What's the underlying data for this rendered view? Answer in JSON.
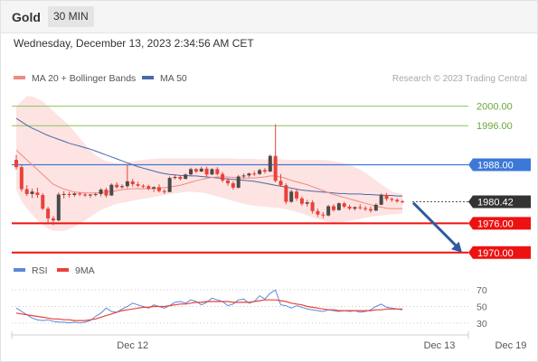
{
  "header": {
    "instrument": "Gold",
    "timeframe": "30 MIN"
  },
  "timestamp": "Wednesday, December 13, 2023 2:34:56 AM CET",
  "colors": {
    "bullish": "#e8423a",
    "bearish": "#e8423a",
    "ma20": "#f08a84",
    "ma50": "#4a6aa8",
    "band_fill": "#fde3e2",
    "green_level": "#8ac45a",
    "blue_level": "#3c78d8",
    "red_level": "#ee1111",
    "current_label": "#333333",
    "rsi": "#5d88d8",
    "rsi_ma": "#e8423a",
    "arrow": "#2f5b9e"
  },
  "chart_data": [
    {
      "type": "candlestick",
      "title": "Gold",
      "legend": [
        {
          "label": "MA 20 + Bollinger Bands",
          "color": "#f08a84"
        },
        {
          "label": "MA 50",
          "color": "#4a6aa8"
        }
      ],
      "watermark": "Research © 2023 Trading Central",
      "ylim": [
        1967,
        2004
      ],
      "x_ticks": [
        {
          "label": "Dec 12",
          "index": 22
        },
        {
          "label": "Dec 13",
          "index": 80
        },
        {
          "label": "Dec 19",
          "index": 93.5
        }
      ],
      "levels": [
        {
          "value": 2000.0,
          "label": "2000.00",
          "kind": "green"
        },
        {
          "value": 1996.0,
          "label": "1996.00",
          "kind": "green"
        },
        {
          "value": 1988.0,
          "label": "1988.00",
          "kind": "blue"
        },
        {
          "value": 1980.42,
          "label": "1980.42",
          "kind": "current"
        },
        {
          "value": 1976.0,
          "label": "1976.00",
          "kind": "red"
        },
        {
          "value": 1970.0,
          "label": "1970.00",
          "kind": "red"
        }
      ],
      "forecast_arrow": {
        "from": 1980.2,
        "to": 1970.0
      },
      "candles": [
        [
          1989,
          1990,
          1987,
          1987.5
        ],
        [
          1987.5,
          1988,
          1982.5,
          1983
        ],
        [
          1983,
          1983.8,
          1981.6,
          1982
        ],
        [
          1982,
          1983.1,
          1981.2,
          1982.5
        ],
        [
          1982.3,
          1983.3,
          1981.2,
          1981.8
        ],
        [
          1981.8,
          1982.2,
          1978.7,
          1979
        ],
        [
          1979,
          1979.4,
          1976.2,
          1977
        ],
        [
          1977,
          1977.5,
          1975.6,
          1976.6
        ],
        [
          1976.6,
          1982.3,
          1976.4,
          1981.9
        ],
        [
          1981.9,
          1982.6,
          1981.1,
          1982
        ],
        [
          1982,
          1982.4,
          1981.3,
          1981.8
        ],
        [
          1981.8,
          1982.4,
          1981.4,
          1982.1
        ],
        [
          1982.1,
          1982.4,
          1981.6,
          1981.9
        ],
        [
          1981.9,
          1982.2,
          1981.4,
          1981.7
        ],
        [
          1981.7,
          1982,
          1981.2,
          1981.9
        ],
        [
          1981.9,
          1982.3,
          1981.5,
          1982
        ],
        [
          1982,
          1983.2,
          1981.5,
          1982.9
        ],
        [
          1982.9,
          1983.3,
          1981.3,
          1981.7
        ],
        [
          1981.7,
          1984.2,
          1981.6,
          1983.9
        ],
        [
          1983.9,
          1984.4,
          1983.1,
          1983.4
        ],
        [
          1983.4,
          1984,
          1983.1,
          1983.6
        ],
        [
          1983.6,
          1988.1,
          1983.2,
          1984.6
        ],
        [
          1984.6,
          1985.1,
          1983.5,
          1984
        ],
        [
          1984,
          1984.5,
          1983.4,
          1983.7
        ],
        [
          1983.7,
          1984,
          1983.2,
          1983.6
        ],
        [
          1983.6,
          1983.9,
          1982.8,
          1983.1
        ],
        [
          1983.1,
          1983.6,
          1982.4,
          1983.4
        ],
        [
          1983.4,
          1984,
          1982.3,
          1982.6
        ],
        [
          1982.6,
          1983,
          1982,
          1982.4
        ],
        [
          1982.4,
          1985.6,
          1982.4,
          1985.3
        ],
        [
          1985.3,
          1986,
          1985,
          1985.5
        ],
        [
          1985.5,
          1985.8,
          1984.8,
          1985.1
        ],
        [
          1985.1,
          1986.2,
          1985,
          1986
        ],
        [
          1986,
          1987.4,
          1985.8,
          1987.1
        ],
        [
          1987.1,
          1987.3,
          1986.3,
          1986.6
        ],
        [
          1986.6,
          1987.6,
          1986.5,
          1987.2
        ],
        [
          1987.2,
          1987.6,
          1985.6,
          1986
        ],
        [
          1986,
          1987.3,
          1985.9,
          1987.1
        ],
        [
          1987.1,
          1987.5,
          1985.8,
          1986.1
        ],
        [
          1986.1,
          1986.5,
          1984.4,
          1984.8
        ],
        [
          1984.8,
          1985.3,
          1983.7,
          1984.2
        ],
        [
          1984.2,
          1984.6,
          1982.9,
          1983.3
        ],
        [
          1983.3,
          1985.9,
          1983.1,
          1985.6
        ],
        [
          1985.6,
          1986.2,
          1985.1,
          1985.8
        ],
        [
          1985.8,
          1986.4,
          1985.4,
          1986.2
        ],
        [
          1986.2,
          1986.7,
          1985.7,
          1986.1
        ],
        [
          1986.1,
          1987.2,
          1985.9,
          1986.9
        ],
        [
          1986.9,
          1987.3,
          1986.2,
          1986.6
        ],
        [
          1986.6,
          1990.1,
          1986.5,
          1989.8
        ],
        [
          1989.8,
          1996.3,
          1984.4,
          1984.7
        ],
        [
          1984.7,
          1986.1,
          1983.5,
          1983.8
        ],
        [
          1983.8,
          1984.2,
          1979.9,
          1980.4
        ],
        [
          1980.4,
          1982.9,
          1980.2,
          1982.5
        ],
        [
          1982.5,
          1983,
          1980.6,
          1981.1
        ],
        [
          1981.1,
          1981.5,
          1979.6,
          1980
        ],
        [
          1980,
          1980.8,
          1979.4,
          1980.3
        ],
        [
          1980.3,
          1980.7,
          1978,
          1978.5
        ],
        [
          1978.5,
          1979,
          1977.3,
          1977.8
        ],
        [
          1977.8,
          1978.3,
          1977,
          1977.6
        ],
        [
          1977.6,
          1979.8,
          1977.4,
          1979.5
        ],
        [
          1979.5,
          1979.9,
          1978.4,
          1978.7
        ],
        [
          1978.7,
          1980.3,
          1978.6,
          1980.1
        ],
        [
          1980.1,
          1980.4,
          1979.1,
          1979.4
        ],
        [
          1979.4,
          1979.8,
          1978.7,
          1979
        ],
        [
          1979,
          1979.5,
          1978.6,
          1979.3
        ],
        [
          1979.3,
          1979.9,
          1978.8,
          1979.1
        ],
        [
          1979.1,
          1979.5,
          1978.5,
          1978.9
        ],
        [
          1978.9,
          1979.4,
          1978.2,
          1978.6
        ],
        [
          1978.6,
          1980.1,
          1978.5,
          1979.8
        ],
        [
          1979.8,
          1982.1,
          1979.7,
          1981.8
        ],
        [
          1981.8,
          1982.2,
          1980.6,
          1981
        ],
        [
          1981,
          1981.3,
          1980.4,
          1980.8
        ],
        [
          1980.8,
          1981.1,
          1980.2,
          1980.5
        ],
        [
          1980.5,
          1980.8,
          1980.1,
          1980.42
        ]
      ],
      "ma20": [
        1991,
        1990,
        1989,
        1988,
        1987,
        1986,
        1985,
        1984,
        1983.5,
        1983,
        1982.7,
        1982.4,
        1982.3,
        1982.2,
        1982.2,
        1982.2,
        1982.3,
        1982.4,
        1982.5,
        1982.7,
        1982.9,
        1983,
        1983.1,
        1983.1,
        1983.1,
        1983.1,
        1983.1,
        1983.2,
        1983.3,
        1983.4,
        1983.6,
        1983.8,
        1984.1,
        1984.4,
        1984.7,
        1985,
        1985.2,
        1985.4,
        1985.5,
        1985.5,
        1985.5,
        1985.4,
        1985.3,
        1985.3,
        1985.3,
        1985.3,
        1985.4,
        1985.5,
        1985.7,
        1985.7,
        1985.5,
        1985.2,
        1984.8,
        1984.5,
        1984.2,
        1983.9,
        1983.5,
        1983.1,
        1982.7,
        1982.3,
        1981.9,
        1981.6,
        1981.3,
        1981,
        1980.7,
        1980.4,
        1980.1,
        1979.8,
        1979.5,
        1979.3,
        1979.1,
        1979,
        1979,
        1979
      ],
      "ma50": [
        1997.5,
        1996.8,
        1996.1,
        1995.5,
        1995,
        1994.5,
        1994,
        1993.6,
        1993.2,
        1992.8,
        1992.4,
        1992.1,
        1991.8,
        1991.5,
        1991.2,
        1990.8,
        1990.4,
        1990,
        1989.6,
        1989.2,
        1988.8,
        1988.4,
        1988,
        1987.6,
        1987.3,
        1987,
        1986.7,
        1986.4,
        1986.2,
        1986,
        1985.9,
        1985.8,
        1985.8,
        1985.7,
        1985.7,
        1985.6,
        1985.5,
        1985.4,
        1985.3,
        1985.2,
        1985.1,
        1985,
        1984.9,
        1984.8,
        1984.7,
        1984.6,
        1984.4,
        1984.2,
        1984,
        1983.8,
        1983.6,
        1983.4,
        1983.2,
        1983,
        1982.8,
        1982.7,
        1982.6,
        1982.5,
        1982.4,
        1982.3,
        1982.2,
        1982.1,
        1982.1,
        1982,
        1982,
        1982,
        1981.9,
        1981.9,
        1981.8,
        1981.8,
        1981.7,
        1981.7,
        1981.6,
        1981.6
      ],
      "bb_upper": [
        2000,
        2001,
        2002,
        2002,
        2001.5,
        2001,
        2000,
        1999,
        1998,
        1997,
        1996,
        1994.8,
        1993.5,
        1992.2,
        1991,
        1990,
        1989.3,
        1988.8,
        1988.5,
        1988.3,
        1988.3,
        1988.5,
        1988.7,
        1988.9,
        1989,
        1989.1,
        1989.2,
        1989.3,
        1989.3,
        1989.3,
        1989.3,
        1989.3,
        1989.3,
        1989.3,
        1989.3,
        1989.3,
        1989.3,
        1989.3,
        1989.3,
        1989.3,
        1989.3,
        1989.3,
        1989.2,
        1989.2,
        1989.2,
        1989.2,
        1989.1,
        1989.1,
        1989.1,
        1989.1,
        1989.1,
        1989,
        1989,
        1989,
        1989,
        1989,
        1989,
        1989,
        1989,
        1988.9,
        1988.7,
        1988.5,
        1988.3,
        1988,
        1987.5,
        1987,
        1986.3,
        1985.6,
        1984.8,
        1984,
        1983.3,
        1982.5,
        1982.2,
        1982
      ],
      "bb_lower": [
        1983,
        1980.5,
        1979,
        1977.8,
        1976.6,
        1975.6,
        1974.9,
        1974.5,
        1974.4,
        1974.5,
        1974.8,
        1975.3,
        1975.9,
        1976.6,
        1977.3,
        1978,
        1978.7,
        1979.2,
        1979.6,
        1980,
        1980.2,
        1980.4,
        1980.6,
        1980.8,
        1981,
        1981.2,
        1981.4,
        1981.6,
        1981.8,
        1982,
        1982.1,
        1982.3,
        1982.4,
        1982.5,
        1982.4,
        1982.3,
        1982.1,
        1981.8,
        1981.5,
        1981.2,
        1980.9,
        1980.6,
        1980.3,
        1980,
        1979.8,
        1979.6,
        1979.5,
        1979.4,
        1979.3,
        1979.2,
        1979.1,
        1978.9,
        1978.6,
        1978.3,
        1978,
        1977.6,
        1977.2,
        1976.8,
        1976.5,
        1976.3,
        1976.2,
        1976.2,
        1976.3,
        1976.5,
        1976.7,
        1976.9,
        1977.1,
        1977.3,
        1977.5,
        1977.6,
        1977.7,
        1977.8,
        1977.9,
        1978
      ]
    },
    {
      "type": "line",
      "title": "RSI",
      "legend": [
        {
          "label": "RSI",
          "color": "#5d88d8"
        },
        {
          "label": "9MA",
          "color": "#e8423a"
        }
      ],
      "ylim": [
        20,
        80
      ],
      "y_ticks": [
        70,
        50,
        30
      ],
      "series": [
        {
          "name": "RSI",
          "values": [
            48,
            44,
            40,
            36,
            34,
            33,
            34,
            32,
            31,
            31,
            30,
            31,
            30,
            31,
            33,
            38,
            42,
            48,
            44,
            43,
            47,
            50,
            54,
            52,
            50,
            48,
            52,
            50,
            48,
            51,
            55,
            56,
            54,
            58,
            56,
            52,
            55,
            60,
            58,
            56,
            51,
            53,
            58,
            59,
            54,
            56,
            63,
            59,
            66,
            70,
            52,
            51,
            48,
            51,
            49,
            47,
            46,
            45,
            44,
            46,
            45,
            44,
            45,
            44,
            45,
            43,
            44,
            46,
            50,
            53,
            49,
            48,
            47,
            46
          ]
        },
        {
          "name": "9MA",
          "values": [
            42,
            41,
            40,
            39,
            38,
            37,
            36,
            35,
            35,
            34,
            34,
            33,
            33,
            33,
            34,
            35,
            37,
            39,
            41,
            43,
            45,
            46,
            47,
            48,
            49,
            49,
            50,
            50,
            50,
            51,
            52,
            53,
            53,
            54,
            55,
            55,
            56,
            56,
            56,
            56,
            56,
            55,
            55,
            55,
            55,
            56,
            57,
            58,
            58,
            58,
            57,
            56,
            54,
            53,
            52,
            50,
            49,
            48,
            47,
            46,
            46,
            45,
            45,
            45,
            45,
            45,
            45,
            45,
            46,
            46,
            47,
            47,
            47,
            47
          ]
        }
      ]
    }
  ]
}
